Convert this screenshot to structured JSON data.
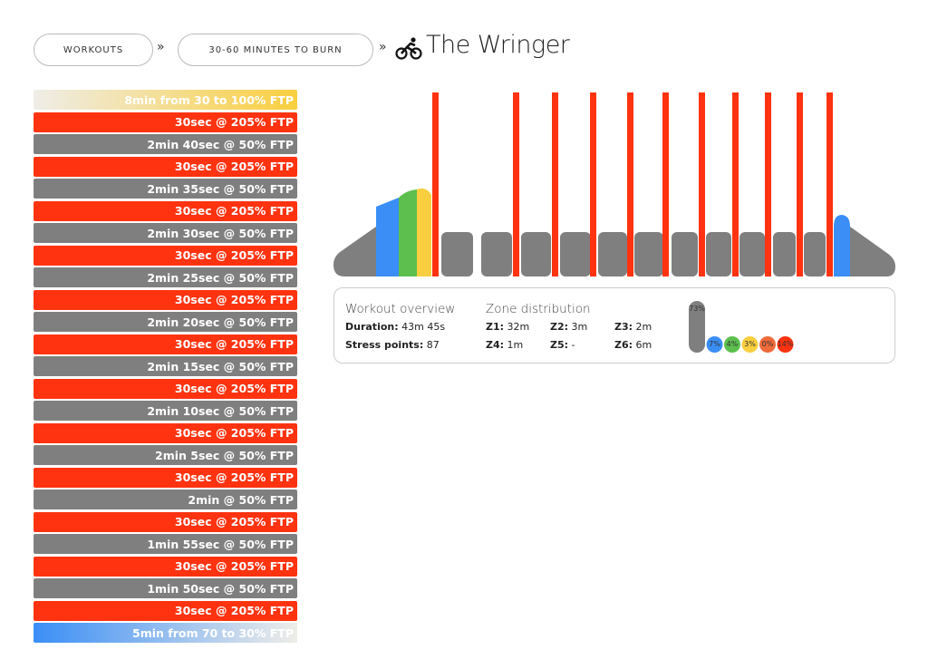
{
  "breadcrumbs": [
    "WORKOUTS",
    "30-60 MINUTES TO BURN"
  ],
  "title": "The Wringer",
  "intervals": [
    {
      "text": "8min from 30 to 100% FTP",
      "colors": [
        "#efede8",
        "#f9cf3f"
      ]
    },
    {
      "text": "30sec @ 205% FTP",
      "colors": [
        "#ff3310"
      ]
    },
    {
      "text": "2min 40sec @ 50% FTP",
      "colors": [
        "#7f7f7f"
      ]
    },
    {
      "text": "30sec @ 205% FTP",
      "colors": [
        "#ff3310"
      ]
    },
    {
      "text": "2min 35sec @ 50% FTP",
      "colors": [
        "#7f7f7f"
      ]
    },
    {
      "text": "30sec @ 205% FTP",
      "colors": [
        "#ff3310"
      ]
    },
    {
      "text": "2min 30sec @ 50% FTP",
      "colors": [
        "#7f7f7f"
      ]
    },
    {
      "text": "30sec @ 205% FTP",
      "colors": [
        "#ff3310"
      ]
    },
    {
      "text": "2min 25sec @ 50% FTP",
      "colors": [
        "#7f7f7f"
      ]
    },
    {
      "text": "30sec @ 205% FTP",
      "colors": [
        "#ff3310"
      ]
    },
    {
      "text": "2min 20sec @ 50% FTP",
      "colors": [
        "#7f7f7f"
      ]
    },
    {
      "text": "30sec @ 205% FTP",
      "colors": [
        "#ff3310"
      ]
    },
    {
      "text": "2min 15sec @ 50% FTP",
      "colors": [
        "#7f7f7f"
      ]
    },
    {
      "text": "30sec @ 205% FTP",
      "colors": [
        "#ff3310"
      ]
    },
    {
      "text": "2min 10sec @ 50% FTP",
      "colors": [
        "#7f7f7f"
      ]
    },
    {
      "text": "30sec @ 205% FTP",
      "colors": [
        "#ff3310"
      ]
    },
    {
      "text": "2min 5sec @ 50% FTP",
      "colors": [
        "#7f7f7f"
      ]
    },
    {
      "text": "30sec @ 205% FTP",
      "colors": [
        "#ff3310"
      ]
    },
    {
      "text": "2min @ 50% FTP",
      "colors": [
        "#7f7f7f"
      ]
    },
    {
      "text": "30sec @ 205% FTP",
      "colors": [
        "#ff3310"
      ]
    },
    {
      "text": "1min 55sec @ 50% FTP",
      "colors": [
        "#7f7f7f"
      ]
    },
    {
      "text": "30sec @ 205% FTP",
      "colors": [
        "#ff3310"
      ]
    },
    {
      "text": "1min 50sec @ 50% FTP",
      "colors": [
        "#7f7f7f"
      ]
    },
    {
      "text": "30sec @ 205% FTP",
      "colors": [
        "#ff3310"
      ]
    },
    {
      "text": "5min from 70 to 30% FTP",
      "colors": [
        "#3a8ef6",
        "#efede8"
      ]
    }
  ],
  "overview": {
    "heading": "Workout overview",
    "duration_label": "Duration:",
    "duration": "43m 45s",
    "stress_label": "Stress points:",
    "stress": "87"
  },
  "zones": {
    "heading": "Zone distribution",
    "items": [
      {
        "label": "Z1:",
        "value": "32m"
      },
      {
        "label": "Z2:",
        "value": "3m"
      },
      {
        "label": "Z3:",
        "value": "2m"
      },
      {
        "label": "Z4:",
        "value": "1m"
      },
      {
        "label": "Z5:",
        "value": "-"
      },
      {
        "label": "Z6:",
        "value": "6m"
      }
    ],
    "values": [
      73,
      7,
      4,
      3,
      0,
      14
    ],
    "value_labels": [
      "73%",
      "7%",
      "4%",
      "3%",
      "0%",
      "14%"
    ],
    "colors": [
      "#7f7f7f",
      "#3a8ef6",
      "#5cbf4e",
      "#f9cf3f",
      "#f06a3a",
      "#ff3310"
    ]
  }
}
